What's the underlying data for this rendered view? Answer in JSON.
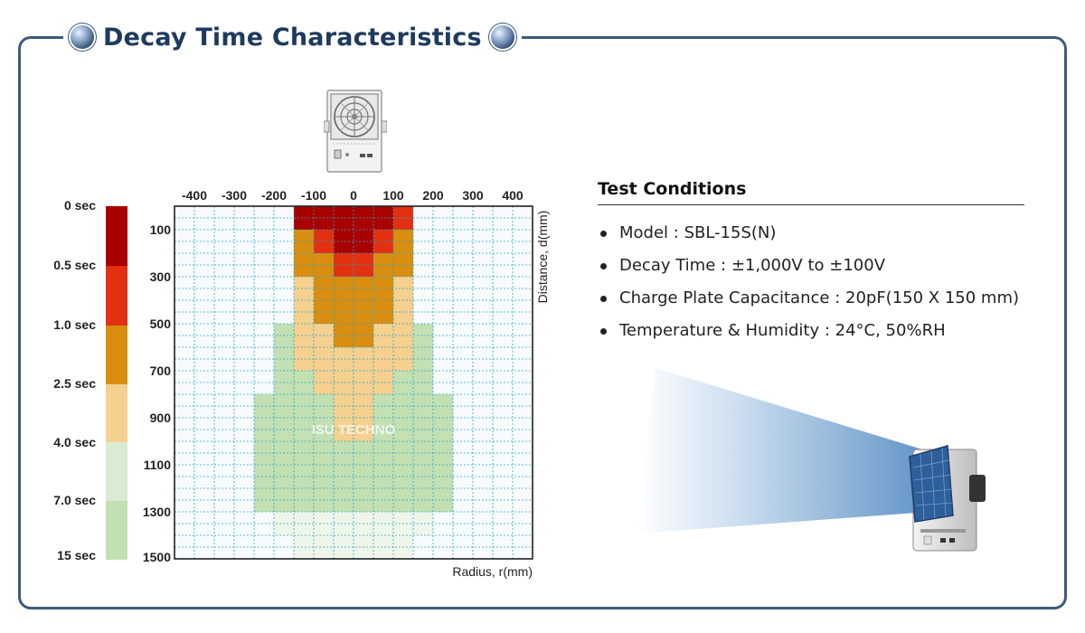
{
  "header": {
    "title": "Decay Time Characteristics",
    "left_icon": "sphere-bullet-icon",
    "right_icon": "sphere-bullet-icon"
  },
  "device_image": {
    "icon": "ionizer-front-view-icon"
  },
  "legend": {
    "labels": [
      "0 sec",
      "0.5 sec",
      "1.0 sec",
      "2.5 sec",
      "4.0 sec",
      "7.0 sec",
      "15 sec"
    ],
    "bands": [
      {
        "from": "0 sec",
        "to": "0.5 sec",
        "color": "#a80000"
      },
      {
        "from": "0.5 sec",
        "to": "1.0 sec",
        "color": "#e23010"
      },
      {
        "from": "1.0 sec",
        "to": "2.5 sec",
        "color": "#d98e10"
      },
      {
        "from": "2.5 sec",
        "to": "4.0 sec",
        "color": "#f5d08e"
      },
      {
        "from": "4.0 sec",
        "to": "7.0 sec",
        "color": "#d9ebd2"
      },
      {
        "from": "7.0 sec",
        "to": "15 sec",
        "color": "#c3e0b3"
      }
    ]
  },
  "chart_data": {
    "type": "heatmap",
    "title": "",
    "xlabel": "Radius, r(mm)",
    "ylabel": "Distance, d(mm)",
    "x_ticks": [
      -400,
      -300,
      -200,
      -100,
      0,
      100,
      200,
      300,
      400
    ],
    "y_ticks": [
      100,
      300,
      500,
      700,
      900,
      1100,
      1300,
      1500
    ],
    "xlim": [
      -450,
      450
    ],
    "ylim": [
      0,
      1500
    ],
    "x_axis_position": "top",
    "y_axis_position": "left",
    "grid": true,
    "cell_size_mm": {
      "x": 50,
      "y": 100
    },
    "x_cell_centers": [
      -425,
      -375,
      -325,
      -275,
      -225,
      -175,
      -125,
      -75,
      -25,
      25,
      75,
      125,
      175,
      225,
      275,
      325,
      375,
      425
    ],
    "y_cell_centers": [
      50,
      150,
      250,
      350,
      450,
      550,
      650,
      750,
      850,
      950,
      1050,
      1150,
      1250,
      1350,
      1450
    ],
    "level_scale": [
      "0-0.5 sec",
      "0.5-1.0 sec",
      "1.0-2.5 sec",
      "2.5-4.0 sec",
      "4.0-7.0 sec",
      "7.0-15 sec",
      "over 15 sec"
    ],
    "level_colors": [
      "#a80000",
      "#e23010",
      "#d98e10",
      "#f5d08e",
      "#d9ebd2",
      "#c3e0b3",
      "#eef6ea"
    ],
    "matrix_levels": [
      [
        -1,
        -1,
        -1,
        -1,
        -1,
        -1,
        0,
        0,
        0,
        0,
        0,
        1,
        -1,
        -1,
        -1,
        -1,
        -1,
        -1
      ],
      [
        -1,
        -1,
        -1,
        -1,
        -1,
        -1,
        2,
        1,
        0,
        0,
        1,
        2,
        -1,
        -1,
        -1,
        -1,
        -1,
        -1
      ],
      [
        -1,
        -1,
        -1,
        -1,
        -1,
        -1,
        2,
        2,
        1,
        1,
        2,
        2,
        -1,
        -1,
        -1,
        -1,
        -1,
        -1
      ],
      [
        -1,
        -1,
        -1,
        -1,
        -1,
        -1,
        3,
        2,
        2,
        2,
        2,
        3,
        -1,
        -1,
        -1,
        -1,
        -1,
        -1
      ],
      [
        -1,
        -1,
        -1,
        -1,
        -1,
        -1,
        3,
        2,
        2,
        2,
        2,
        3,
        -1,
        -1,
        -1,
        -1,
        -1,
        -1
      ],
      [
        -1,
        -1,
        -1,
        -1,
        -1,
        5,
        3,
        3,
        2,
        2,
        3,
        3,
        5,
        -1,
        -1,
        -1,
        -1,
        -1
      ],
      [
        -1,
        -1,
        -1,
        -1,
        -1,
        5,
        3,
        3,
        3,
        3,
        3,
        3,
        5,
        -1,
        -1,
        -1,
        -1,
        -1
      ],
      [
        -1,
        -1,
        -1,
        -1,
        -1,
        5,
        5,
        3,
        3,
        3,
        3,
        5,
        5,
        -1,
        -1,
        -1,
        -1,
        -1
      ],
      [
        -1,
        -1,
        -1,
        -1,
        5,
        5,
        5,
        5,
        3,
        3,
        5,
        5,
        5,
        5,
        -1,
        -1,
        -1,
        -1
      ],
      [
        -1,
        -1,
        -1,
        -1,
        5,
        5,
        5,
        5,
        3,
        3,
        5,
        5,
        5,
        5,
        -1,
        -1,
        -1,
        -1
      ],
      [
        -1,
        -1,
        -1,
        -1,
        5,
        5,
        5,
        5,
        5,
        5,
        5,
        5,
        5,
        5,
        -1,
        -1,
        -1,
        -1
      ],
      [
        -1,
        -1,
        -1,
        -1,
        5,
        5,
        5,
        5,
        5,
        5,
        5,
        5,
        5,
        5,
        -1,
        -1,
        -1,
        -1
      ],
      [
        -1,
        -1,
        -1,
        -1,
        5,
        5,
        5,
        5,
        5,
        5,
        5,
        5,
        5,
        5,
        -1,
        -1,
        -1,
        -1
      ],
      [
        -1,
        -1,
        -1,
        -1,
        -1,
        6,
        6,
        6,
        6,
        6,
        6,
        6,
        6,
        -1,
        -1,
        -1,
        -1,
        -1
      ],
      [
        -1,
        -1,
        -1,
        -1,
        -1,
        -1,
        6,
        6,
        6,
        6,
        6,
        6,
        -1,
        -1,
        -1,
        -1,
        -1,
        -1
      ]
    ],
    "watermark": "ISU TECHNO"
  },
  "test_conditions": {
    "title": "Test Conditions",
    "items": [
      {
        "key": "Model",
        "sep": " : ",
        "value": "SBL-15S(N)"
      },
      {
        "key": "Decay Time",
        "sep": " : ",
        "value": "±1,000V to ±100V"
      },
      {
        "key": "Charge Plate Capacitance",
        "sep": " : ",
        "value": "20pF(150 X 150 mm)"
      },
      {
        "key": "Temperature & Humidity",
        "sep": " : ",
        "value": "24°C, 50%RH"
      }
    ]
  },
  "illustration": {
    "icon": "ionizer-airflow-illustration-icon",
    "beam_color": "#6f9fcd",
    "grille_color": "#2f5f9a"
  }
}
